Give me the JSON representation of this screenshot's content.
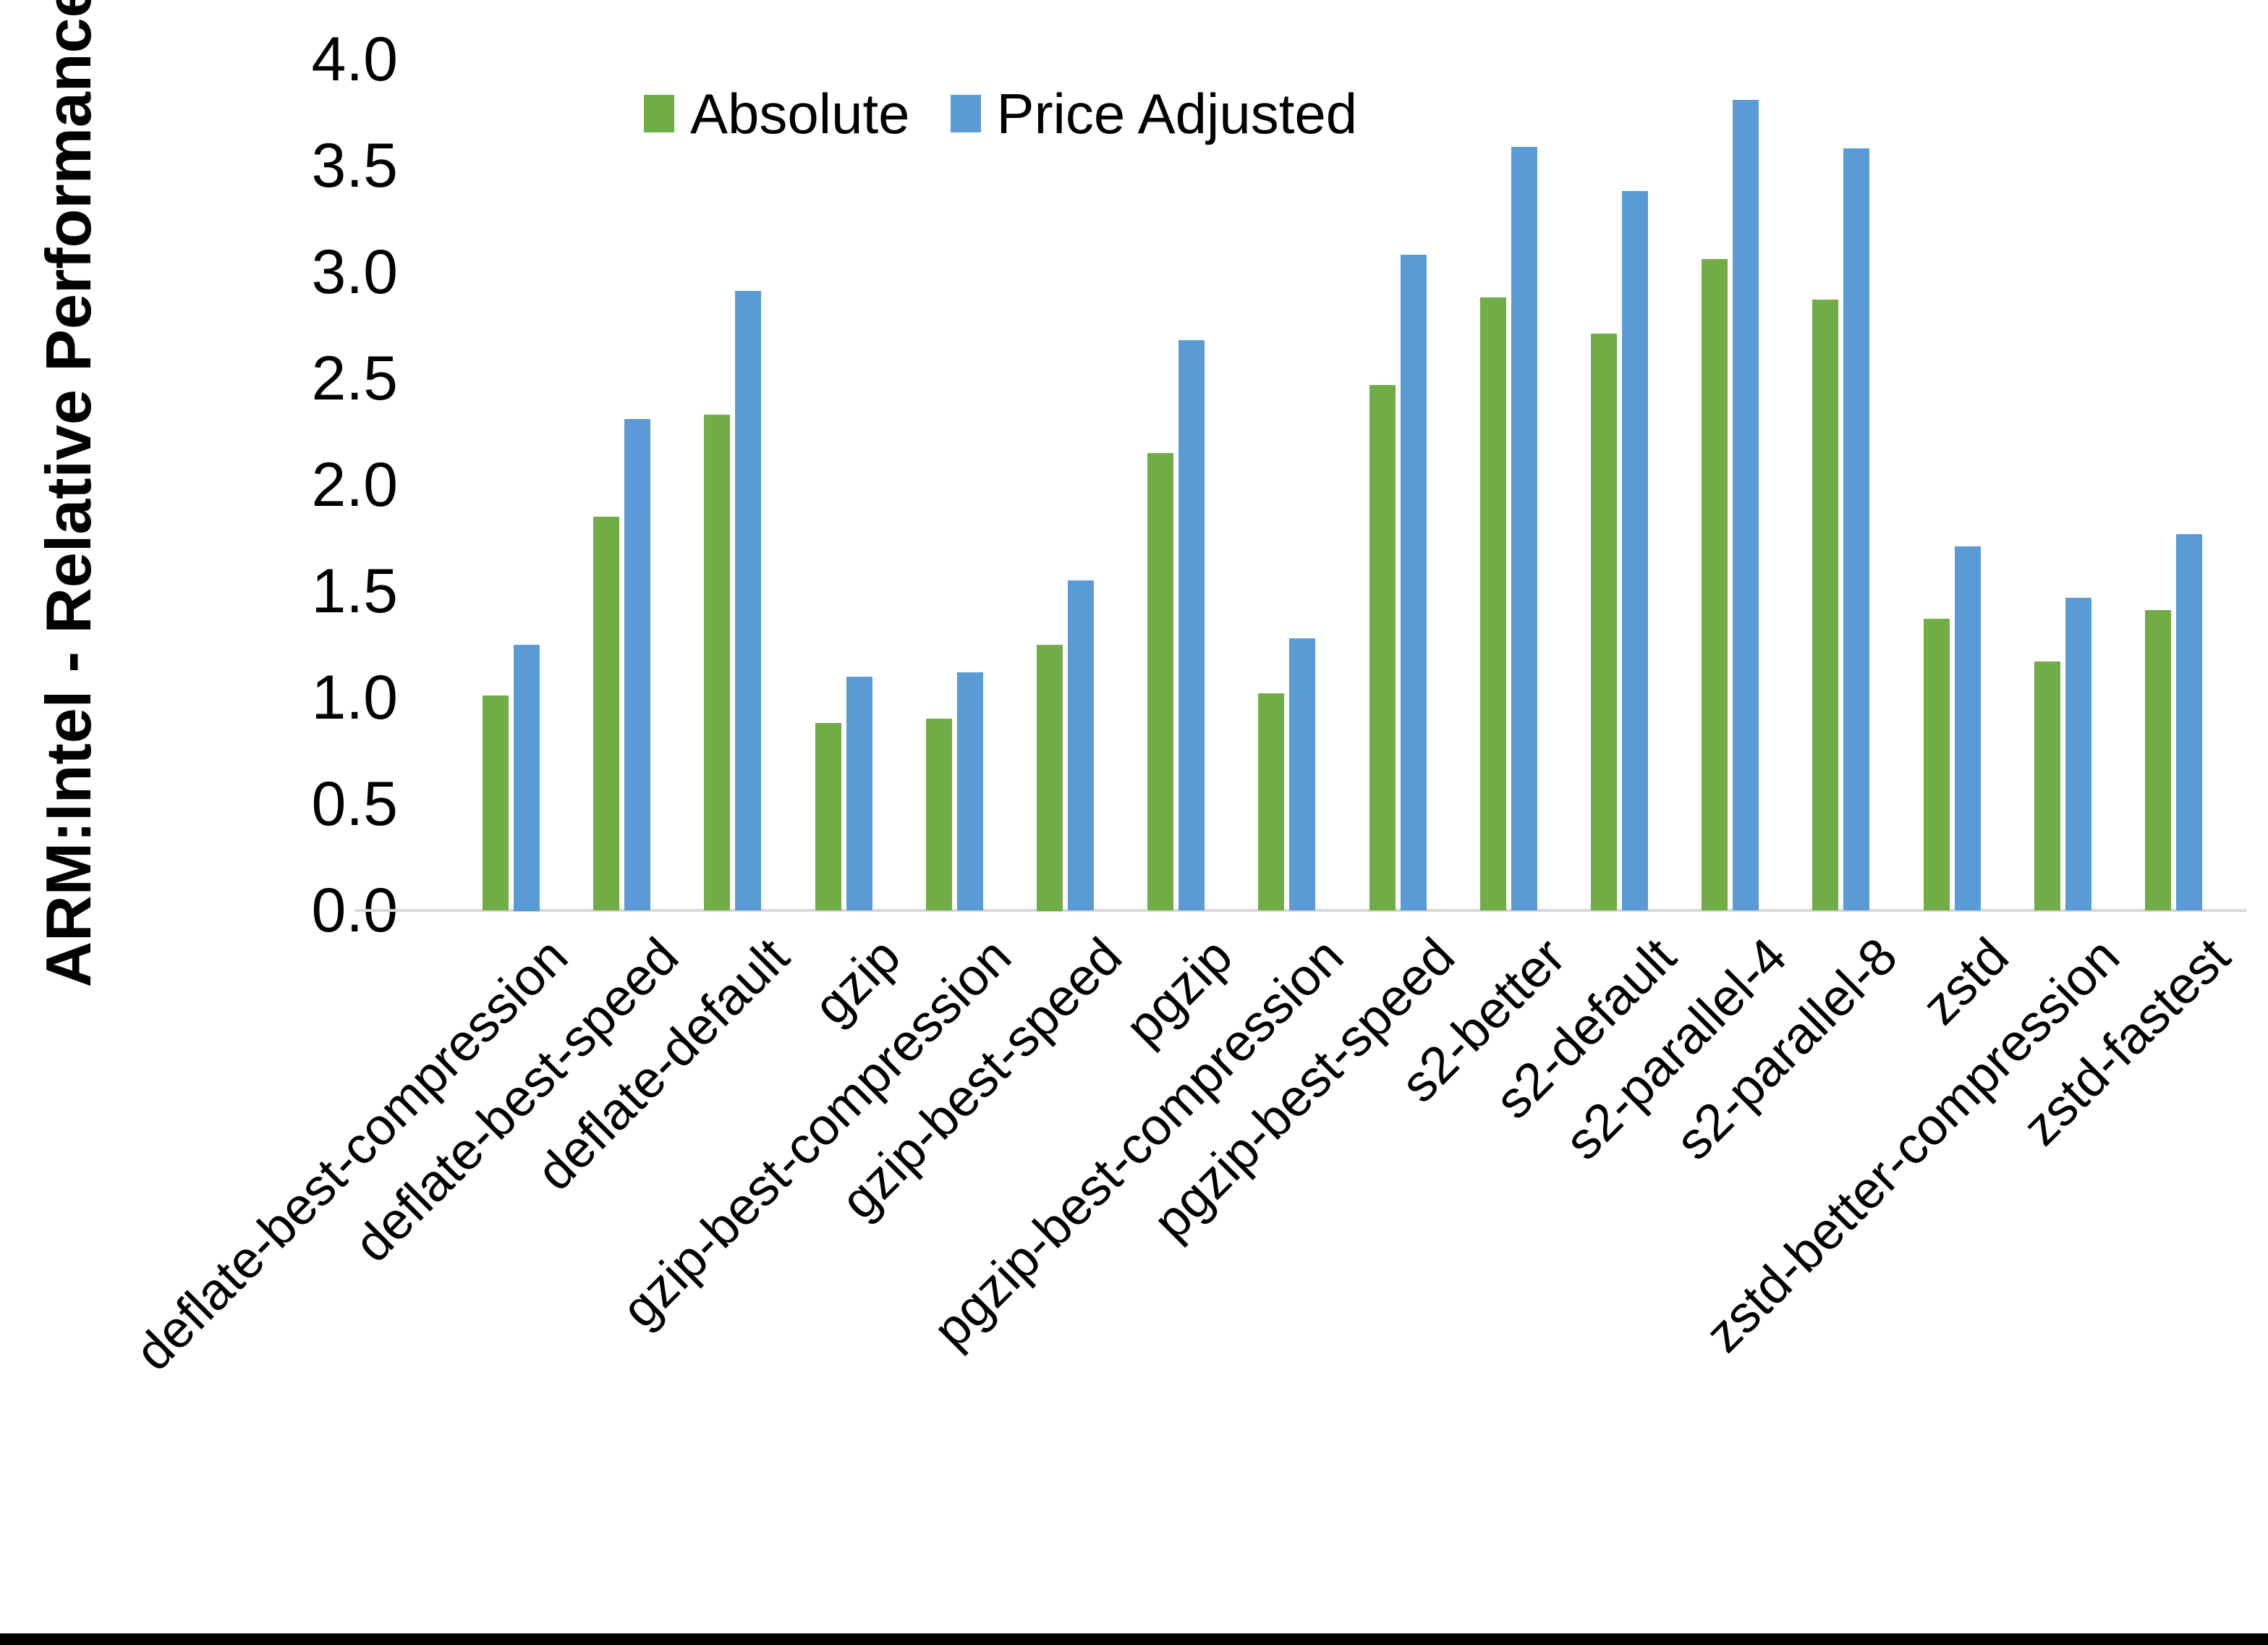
{
  "figure": {
    "y_axis_title": "ARM:Intel - Relative Performance",
    "colors": {
      "absolute_series": "#70AD47",
      "price_adjusted_series": "#5B9BD5",
      "axis_line": "#D9D9D9",
      "text": "#000000"
    }
  },
  "legend": {
    "items": [
      {
        "label": "Absolute",
        "color": "#70AD47"
      },
      {
        "label": "Price Adjusted",
        "color": "#5B9BD5"
      }
    ]
  },
  "chart_data": {
    "type": "bar",
    "title": "",
    "xlabel": "",
    "ylabel": "ARM:Intel - Relative Performance",
    "ylim": [
      0.0,
      4.0
    ],
    "ytick_step": 0.5,
    "ytick_labels": [
      "4.0",
      "3.5",
      "3.0",
      "2.5",
      "2.0",
      "1.5",
      "1.0",
      "0.5",
      "0.0"
    ],
    "grid": false,
    "legend_position": "top-center",
    "categories": [
      "deflate-best-compression",
      "deflate-best-speed",
      "deflate-default",
      "gzip",
      "gzip-best-compression",
      "gzip-best-speed",
      "pgzip",
      "pgzip-best-compression",
      "pgzip-best-speed",
      "s2-better",
      "s2-default",
      "s2-parallel-4",
      "s2-parallel-8",
      "zstd",
      "zstd-better-compression",
      "zstd-fastest"
    ],
    "series": [
      {
        "name": "Absolute",
        "color": "#70AD47",
        "values": [
          1.01,
          1.85,
          2.33,
          0.88,
          0.9,
          1.25,
          2.15,
          1.02,
          2.47,
          2.88,
          2.71,
          3.06,
          2.87,
          1.37,
          1.17,
          1.41
        ]
      },
      {
        "name": "Price Adjusted",
        "color": "#5B9BD5",
        "values": [
          1.25,
          2.31,
          2.91,
          1.1,
          1.12,
          1.55,
          2.68,
          1.28,
          3.08,
          3.59,
          3.38,
          3.81,
          3.58,
          1.71,
          1.47,
          1.77
        ]
      }
    ]
  }
}
